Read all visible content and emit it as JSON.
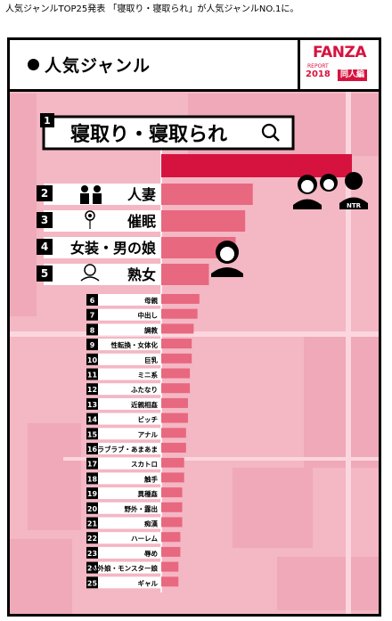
{
  "caption": "人気ジャンルTOP25発表 「寝取り・寝取られ」が人気ジャンルNO.1に。",
  "header": {
    "title": "人気ジャンル"
  },
  "logo": {
    "name": "FANZA",
    "report": "REPORT",
    "year": "2018",
    "badge": "同人編"
  },
  "icons": [
    "search-icon",
    "couple-icon",
    "hypnosis-icon",
    "woman-icon",
    "mature-woman-icon",
    "ntr-group-icon"
  ],
  "colors": {
    "bar": "#e8687f",
    "bar_top": "#d6133f",
    "background": "#f4b7c4",
    "number_bg": "#000000"
  },
  "chart_data": {
    "type": "bar",
    "orientation": "horizontal",
    "categories": [
      "寝取り・寝取られ",
      "人妻",
      "催眠",
      "女装・男の娘",
      "熟女",
      "母親",
      "中出し",
      "調教",
      "性転換・女体化",
      "巨乳",
      "ミニ系",
      "ふたなり",
      "近親相姦",
      "ビッチ",
      "アナル",
      "ラブラブ・あまあま",
      "スカトロ",
      "触手",
      "異種姦",
      "野外・露出",
      "痴漢",
      "ハーレム",
      "辱め",
      "人外娘・モンスター娘",
      "ギャル"
    ],
    "ranks": [
      1,
      2,
      3,
      4,
      5,
      6,
      7,
      8,
      9,
      10,
      11,
      12,
      13,
      14,
      15,
      16,
      17,
      18,
      19,
      20,
      21,
      22,
      23,
      24,
      25
    ],
    "values": [
      100,
      48,
      44,
      39,
      25,
      20,
      19,
      17,
      16,
      16,
      15,
      15,
      14,
      14,
      13,
      13,
      12,
      12,
      11,
      11,
      11,
      10,
      10,
      9,
      9
    ],
    "labels": [
      "NTR"
    ]
  }
}
